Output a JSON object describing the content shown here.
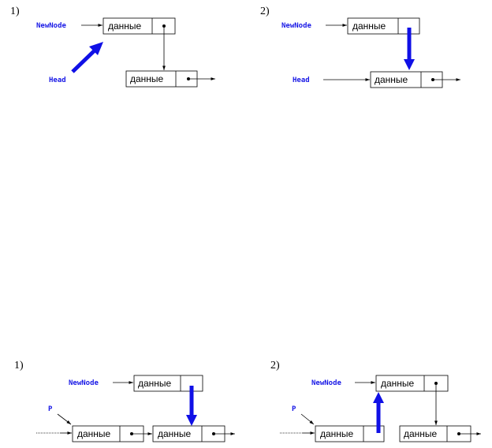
{
  "colors": {
    "pointer_label": "#1a1ae6",
    "bold_arrow": "#1010e6",
    "line": "#000000"
  },
  "node_text": "данные",
  "top": {
    "step1": {
      "number": "1)",
      "newnode": "NewNode",
      "head": "Head"
    },
    "step2": {
      "number": "2)",
      "newnode": "NewNode",
      "head": "Head"
    }
  },
  "bottom": {
    "step1": {
      "number": "1)",
      "newnode": "NewNode",
      "p": "P"
    },
    "step2": {
      "number": "2)",
      "newnode": "NewNode",
      "p": "P"
    }
  }
}
